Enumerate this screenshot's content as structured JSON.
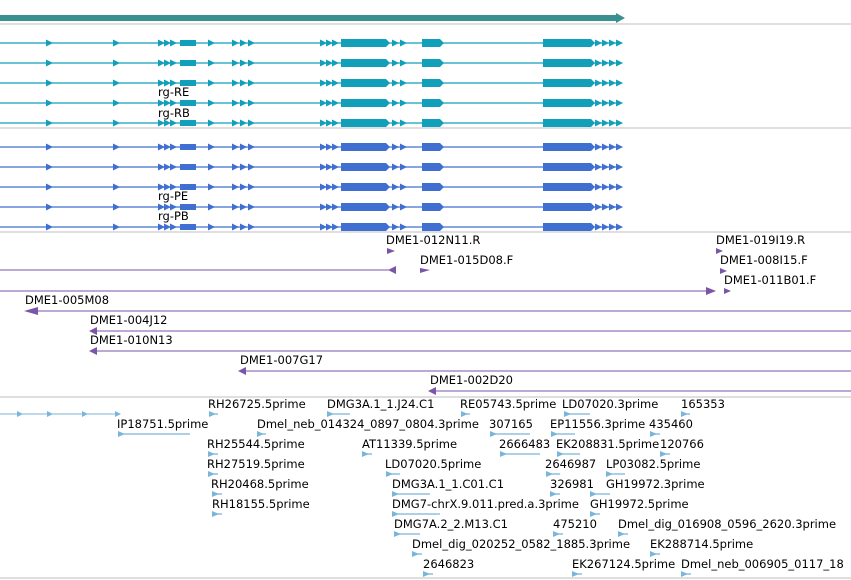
{
  "colors": {
    "gene": "#3a8f8f",
    "transcript": "#119fb9",
    "protein": "#3f6fd1",
    "clone": "#7a55a8",
    "est": "#7ab5da",
    "separator": "#bfbfbf"
  },
  "icons": {
    "forward_strand": "arrow-right-icon",
    "reverse_strand": "arrow-left-icon"
  },
  "tracks": {
    "transcripts": {
      "labels": [
        "rg-RE",
        "rg-RB"
      ]
    },
    "proteins": {
      "labels": [
        "rg-PE",
        "rg-PB"
      ]
    },
    "clones": {
      "labels": [
        "DME1-012N11.R",
        "DME1-015D08.F",
        "DME1-019I19.R",
        "DME1-008I15.F",
        "DME1-011B01.F",
        "DME1-005M08",
        "DME1-004J12",
        "DME1-010N13",
        "DME1-007G17",
        "DME1-002D20"
      ]
    },
    "ests": {
      "labels": [
        "RH26725.5prime",
        "DMG3A.1_1.J24.C1",
        "RE05743.5prime",
        "LD07020.3prime",
        "165353",
        "IP18751.5prime",
        "Dmel_neb_014324_0897_0804.3prime",
        "307165",
        "EP11556.3prime",
        "435460",
        "RH25544.5prime",
        "AT11339.5prime",
        "2666483",
        "EK208831.5prime",
        "120766",
        "RH27519.5prime",
        "LD07020.5prime",
        "2646987",
        "LP03082.5prime",
        "RH20468.5prime",
        "DMG3A.1_1.C01.C1",
        "326981",
        "GH19972.3prime",
        "RH18155.5prime",
        "DMG7-chrX.9.011.pred.a.3prime",
        "GH19972.5prime",
        "DMG7A.2_2.M13.C1",
        "475210",
        "Dmel_dig_016908_0596_2620.3prime",
        "Dmel_dig_020252_0582_1885.3prime",
        "EK288714.5prime",
        "2646823",
        "EK267124.5prime",
        "Dmel_neb_006905_0117_18"
      ]
    }
  }
}
